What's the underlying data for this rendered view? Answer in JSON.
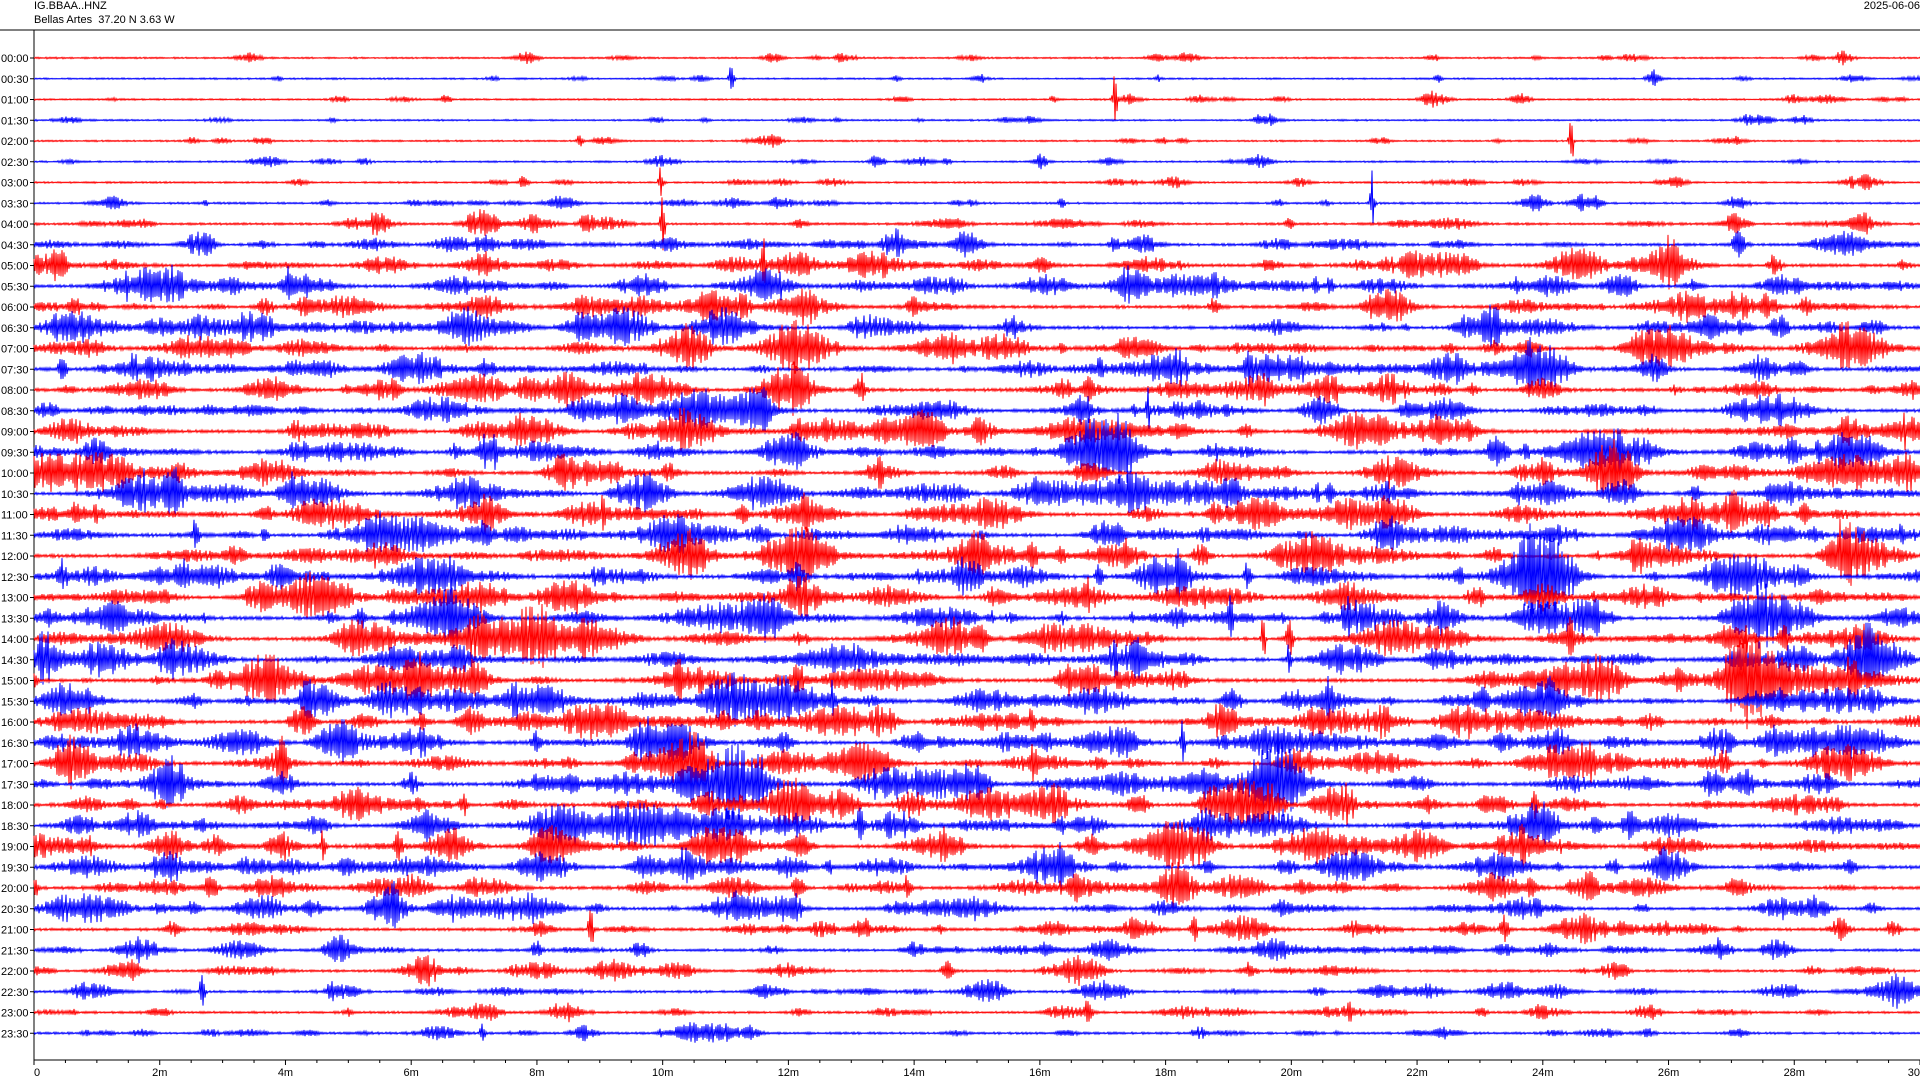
{
  "header": {
    "station_id": "IG.BBAA..HNZ",
    "station_location": "Bellas Artes  37.20 N 3.63 W",
    "date": "2025-06-06"
  },
  "chart_data": {
    "type": "line",
    "title": "IG.BBAA..HNZ",
    "subtitle": "Bellas Artes  37.20 N 3.63 W",
    "row_labels": [
      "00:00",
      "00:30",
      "01:00",
      "01:30",
      "02:00",
      "02:30",
      "03:00",
      "03:30",
      "04:00",
      "04:30",
      "05:00",
      "05:30",
      "06:00",
      "06:30",
      "07:00",
      "07:30",
      "08:00",
      "08:30",
      "09:00",
      "09:30",
      "10:00",
      "10:30",
      "11:00",
      "11:30",
      "12:00",
      "12:30",
      "13:00",
      "13:30",
      "14:00",
      "14:30",
      "15:00",
      "15:30",
      "16:00",
      "16:30",
      "17:00",
      "17:30",
      "18:00",
      "18:30",
      "19:00",
      "19:30",
      "20:00",
      "20:30",
      "21:00",
      "21:30",
      "22:00",
      "22:30",
      "23:00",
      "23:30"
    ],
    "x_ticks": [
      "0",
      "2m",
      "4m",
      "6m",
      "8m",
      "10m",
      "12m",
      "14m",
      "16m",
      "18m",
      "20m",
      "22m",
      "24m",
      "26m",
      "28m",
      "30"
    ],
    "xlim": [
      0,
      30
    ],
    "x_unit": "minutes",
    "row_activity": [
      0.16,
      0.15,
      0.16,
      0.16,
      0.16,
      0.18,
      0.22,
      0.3,
      0.42,
      0.55,
      0.7,
      0.72,
      0.74,
      0.76,
      0.78,
      0.78,
      0.78,
      0.8,
      0.82,
      0.82,
      0.82,
      0.84,
      0.84,
      0.86,
      0.88,
      0.88,
      0.88,
      0.88,
      0.86,
      0.86,
      0.88,
      0.88,
      0.88,
      0.88,
      0.88,
      0.88,
      0.86,
      0.86,
      0.84,
      0.8,
      0.76,
      0.7,
      0.62,
      0.55,
      0.5,
      0.46,
      0.42,
      0.4
    ],
    "series_colors": [
      "#ff0000",
      "#0000ff"
    ],
    "grid": false
  }
}
